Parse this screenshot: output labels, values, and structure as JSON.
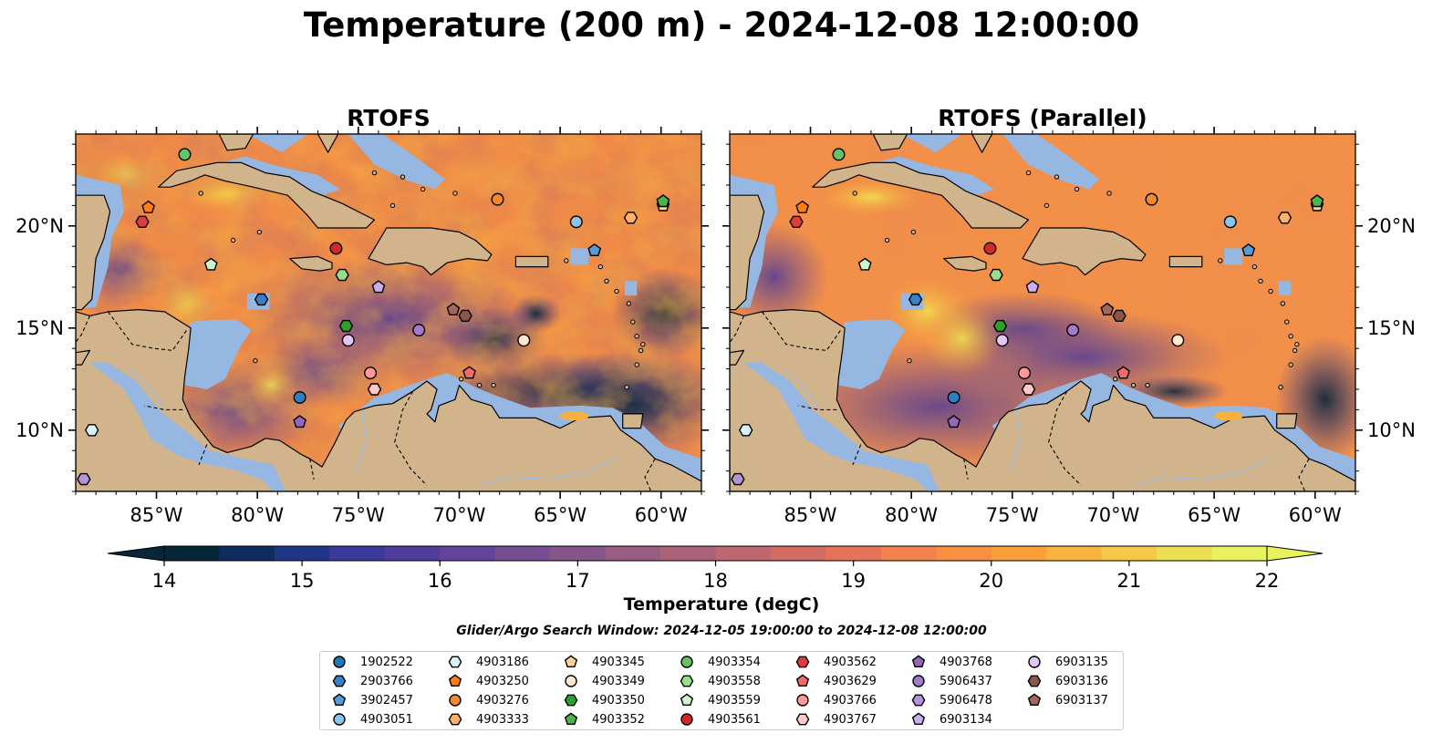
{
  "title": "Temperature (200 m) - 2024-12-08 12:00:00",
  "chart_data": [
    {
      "type": "heatmap",
      "title": "RTOFS",
      "xlabel": "",
      "ylabel": "",
      "xlim": [
        -89,
        -58
      ],
      "ylim": [
        7,
        24.5
      ],
      "x_ticks": [
        "85°W",
        "80°W",
        "75°W",
        "70°W",
        "65°W",
        "60°W"
      ],
      "x_tick_values": [
        -85,
        -80,
        -75,
        -70,
        -65,
        -60
      ],
      "y_ticks": [
        "10°N",
        "15°N",
        "20°N"
      ],
      "y_tick_values": [
        10,
        15,
        20
      ],
      "y_tick_side": "left",
      "field_range_degC": [
        14,
        22
      ],
      "pattern": "eddy"
    },
    {
      "type": "heatmap",
      "title": "RTOFS (Parallel)",
      "xlabel": "",
      "ylabel": "",
      "xlim": [
        -89,
        -58
      ],
      "ylim": [
        7,
        24.5
      ],
      "x_ticks": [
        "85°W",
        "80°W",
        "75°W",
        "70°W",
        "65°W",
        "60°W"
      ],
      "x_tick_values": [
        -85,
        -80,
        -75,
        -70,
        -65,
        -60
      ],
      "y_ticks": [
        "10°N",
        "15°N",
        "20°N"
      ],
      "y_tick_values": [
        10,
        15,
        20
      ],
      "y_tick_side": "right",
      "field_range_degC": [
        14,
        22
      ],
      "pattern": "smooth"
    }
  ],
  "colorbar": {
    "label": "Temperature (degC)",
    "min": 14,
    "max": 22,
    "step": 0.5,
    "extend": "both",
    "ticks": [
      "14",
      "15",
      "16",
      "17",
      "18",
      "19",
      "20",
      "21",
      "22"
    ],
    "colors": [
      "#07263a",
      "#0e2d5e",
      "#1f3688",
      "#3a3a9c",
      "#503c9c",
      "#64449a",
      "#774e92",
      "#875689",
      "#975d83",
      "#aa6278",
      "#bf676e",
      "#d16c64",
      "#e4735a",
      "#f2824c",
      "#f79040",
      "#f9a03b",
      "#f9b33f",
      "#f5c847",
      "#edde52",
      "#e8f25f"
    ]
  },
  "window_label": "Glider/Argo Search Window: 2024-12-05 19:00:00 to 2024-12-08 12:00:00",
  "colors": {
    "land": "#d2b48c",
    "shelf": "#97b7e3",
    "coast": "#000000",
    "border": "#000000",
    "river": "#9fbfe6"
  },
  "platforms": [
    {
      "id": "1902522",
      "marker": "circle",
      "color": "#1f77b4",
      "lon": null,
      "lat": null
    },
    {
      "id": "2903766",
      "marker": "hexagon",
      "color": "#3a80c6",
      "lon": -79.8,
      "lat": 16.4
    },
    {
      "id": "3902457",
      "marker": "pentagon",
      "color": "#5b9bd5",
      "lon": -63.3,
      "lat": 18.8
    },
    {
      "id": "4903051",
      "marker": "circle",
      "color": "#8ec3ea",
      "lon": -64.2,
      "lat": 20.2
    },
    {
      "id": "4903186",
      "marker": "hexagon",
      "color": "#d9f0fb",
      "lon": -88.2,
      "lat": 10.0
    },
    {
      "id": "4903250",
      "marker": "pentagon",
      "color": "#ff7f0e",
      "lon": -85.4,
      "lat": 20.9
    },
    {
      "id": "4903276",
      "marker": "circle",
      "color": "#f5892d",
      "lon": -68.1,
      "lat": 21.3
    },
    {
      "id": "4903333",
      "marker": "hexagon",
      "color": "#ffb069",
      "lon": -61.5,
      "lat": 20.4
    },
    {
      "id": "4903345",
      "marker": "pentagon",
      "color": "#ffd197",
      "lon": -59.9,
      "lat": 21.0
    },
    {
      "id": "4903349",
      "marker": "circle",
      "color": "#ffe6cc",
      "lon": -66.8,
      "lat": 14.4
    },
    {
      "id": "4903350",
      "marker": "hexagon",
      "color": "#2ca02c",
      "lon": -75.6,
      "lat": 15.1
    },
    {
      "id": "4903352",
      "marker": "pentagon",
      "color": "#49b649",
      "lon": -59.9,
      "lat": 21.2
    },
    {
      "id": "4903354",
      "marker": "circle",
      "color": "#66c266",
      "lon": -83.6,
      "lat": 23.5
    },
    {
      "id": "4903558",
      "marker": "hexagon",
      "color": "#98df8a",
      "lon": -75.8,
      "lat": 17.6
    },
    {
      "id": "4903559",
      "marker": "pentagon",
      "color": "#cbf5c6",
      "lon": -82.3,
      "lat": 18.1
    },
    {
      "id": "4903561",
      "marker": "circle",
      "color": "#d62728",
      "lon": -76.1,
      "lat": 18.9
    },
    {
      "id": "4903562",
      "marker": "hexagon",
      "color": "#e03c3d",
      "lon": -85.7,
      "lat": 20.2
    },
    {
      "id": "4903629",
      "marker": "pentagon",
      "color": "#f36a6a",
      "lon": -69.5,
      "lat": 12.8
    },
    {
      "id": "4903766",
      "marker": "circle",
      "color": "#ff9896",
      "lon": -74.4,
      "lat": 12.8
    },
    {
      "id": "4903767",
      "marker": "hexagon",
      "color": "#ffc8c6",
      "lon": -74.2,
      "lat": 12.0
    },
    {
      "id": "4903768",
      "marker": "pentagon",
      "color": "#9467bd",
      "lon": -77.9,
      "lat": 10.4
    },
    {
      "id": "5906437",
      "marker": "circle",
      "color": "#a17ccb",
      "lon": null,
      "lat": null
    },
    {
      "id": "5906478",
      "marker": "hexagon",
      "color": "#b493d6",
      "lon": -88.6,
      "lat": 7.6
    },
    {
      "id": "6903134",
      "marker": "pentagon",
      "color": "#caaef0",
      "lon": -74.0,
      "lat": 17.0
    },
    {
      "id": "6903135",
      "marker": "circle",
      "color": "#e3c8f5",
      "lon": -75.5,
      "lat": 14.4
    },
    {
      "id": "6903136",
      "marker": "hexagon",
      "color": "#8c564b",
      "lon": -69.7,
      "lat": 15.6
    },
    {
      "id": "6903137",
      "marker": "pentagon",
      "color": "#a0685b",
      "lon": -70.3,
      "lat": 15.9
    }
  ],
  "extra_markers": [
    {
      "marker": "circle",
      "color": "#2f7fc0",
      "lon": -77.9,
      "lat": 11.6
    },
    {
      "marker": "circle",
      "color": "#a67ac9",
      "lon": -72.0,
      "lat": 14.9
    }
  ]
}
